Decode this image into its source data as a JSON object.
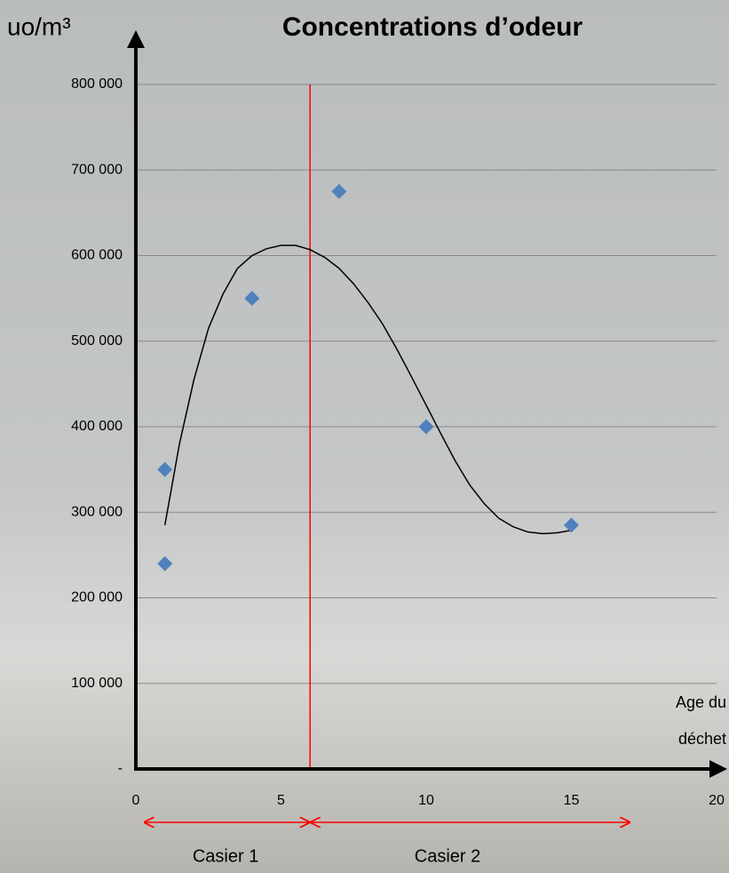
{
  "chart_data": {
    "type": "scatter",
    "title": "Concentrations d’odeur",
    "y_label": "uo/m³",
    "x_label": [
      "Age du",
      "déchet"
    ],
    "x": [
      1,
      1,
      4,
      7,
      10,
      15
    ],
    "values": [
      240000,
      350000,
      550000,
      675000,
      400000,
      285000
    ],
    "color": "#4f81bd",
    "trend": {
      "x": [
        1,
        1.5,
        2,
        2.5,
        3,
        3.5,
        4,
        4.5,
        5,
        5.5,
        6,
        6.5,
        7,
        7.5,
        8,
        8.5,
        9,
        9.5,
        10,
        10.5,
        11,
        11.5,
        12,
        12.5,
        13,
        13.5,
        14,
        14.5,
        15
      ],
      "values": [
        285000,
        380000,
        455000,
        515000,
        555000,
        585000,
        600000,
        608000,
        612000,
        612000,
        607000,
        598000,
        585000,
        567000,
        545000,
        520000,
        490000,
        458000,
        425000,
        392000,
        360000,
        332000,
        310000,
        293000,
        283000,
        277000,
        275000,
        276000,
        279000
      ],
      "color": "#000000"
    },
    "divider": {
      "x": 6,
      "color": "#ff0000"
    },
    "ranges": [
      {
        "label": "Casier 1",
        "from": 0,
        "to": 6
      },
      {
        "label": "Casier 2",
        "from": 6,
        "to": 17
      }
    ],
    "xlim": [
      0,
      20
    ],
    "xticks": [
      0,
      5,
      10,
      15,
      20
    ],
    "ylim": [
      0,
      800000
    ],
    "yticks": [
      {
        "value": 0,
        "label": "-"
      },
      {
        "value": 100000,
        "label": "100 000"
      },
      {
        "value": 200000,
        "label": "200 000"
      },
      {
        "value": 300000,
        "label": "300 000"
      },
      {
        "value": 400000,
        "label": "400 000"
      },
      {
        "value": 500000,
        "label": "500 000"
      },
      {
        "value": 600000,
        "label": "600 000"
      },
      {
        "value": 700000,
        "label": "700 000"
      },
      {
        "value": 800000,
        "label": "800 000"
      }
    ],
    "grid": true
  }
}
